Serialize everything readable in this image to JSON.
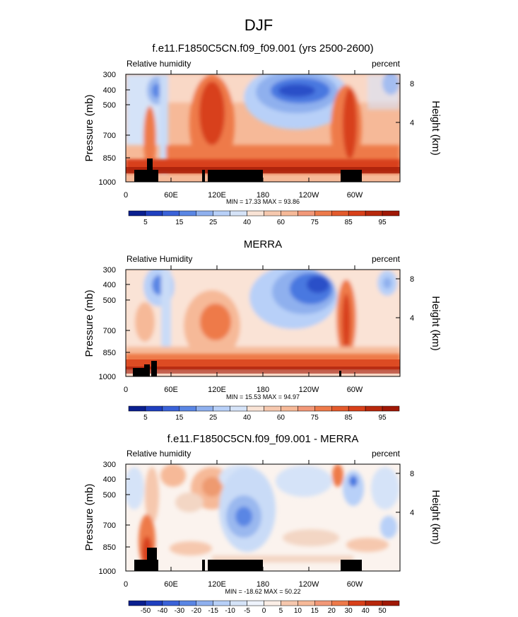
{
  "page_title": "DJF",
  "colors": {
    "blue_dark": "#0a1f8f",
    "blue_mid": "#4a78e0",
    "blue_light": "#b8d0f8",
    "neutral": "#f7e6dc",
    "peach": "#f6b998",
    "orange": "#ee7a4a",
    "red": "#d8401a",
    "red_dark": "#a01806",
    "terrain": "#000000"
  },
  "chart_data": [
    {
      "type": "heatmap",
      "title": "f.e11.F1850C5CN.f09_f09.001 (yrs 2500-2600)",
      "left_label": "Relative humidity",
      "right_label": "percent",
      "ylabel": "Pressure (mb)",
      "ylabel_right": "Height (km)",
      "yticks": [
        "300",
        "400",
        "500",
        "700",
        "850",
        "1000"
      ],
      "yticks_right": [
        "8",
        "4"
      ],
      "xticks": [
        "0",
        "60E",
        "120E",
        "180",
        "120W",
        "60W"
      ],
      "stats": "MIN = 17.33  MAX = 93.86",
      "colorbar_labels": [
        "5",
        "15",
        "25",
        "40",
        "60",
        "75",
        "85",
        "95"
      ],
      "zlim": [
        17.33,
        93.86
      ]
    },
    {
      "type": "heatmap",
      "title": "MERRA",
      "left_label": "Relative Humidity",
      "right_label": "percent",
      "ylabel": "Pressure (mb)",
      "ylabel_right": "Height (km)",
      "yticks": [
        "300",
        "400",
        "500",
        "700",
        "850",
        "1000"
      ],
      "yticks_right": [
        "8",
        "4"
      ],
      "xticks": [
        "0",
        "60E",
        "120E",
        "180",
        "120W",
        "60W"
      ],
      "stats": "MIN = 15.53  MAX = 94.97",
      "colorbar_labels": [
        "5",
        "15",
        "25",
        "40",
        "60",
        "75",
        "85",
        "95"
      ],
      "zlim": [
        15.53,
        94.97
      ]
    },
    {
      "type": "heatmap",
      "title": "f.e11.F1850C5CN.f09_f09.001 - MERRA",
      "left_label": "Relative humidity",
      "right_label": "percent",
      "ylabel": "Pressure (mb)",
      "ylabel_right": "Height (km)",
      "yticks": [
        "300",
        "400",
        "500",
        "700",
        "850",
        "1000"
      ],
      "yticks_right": [
        "8",
        "4"
      ],
      "xticks": [
        "0",
        "60E",
        "120E",
        "180",
        "120W",
        "60W"
      ],
      "stats": "MIN = -18.62  MAX = 50.22",
      "colorbar_labels": [
        "-50",
        "-40",
        "-30",
        "-20",
        "-15",
        "-10",
        "-5",
        "0",
        "5",
        "10",
        "15",
        "20",
        "30",
        "40",
        "50"
      ],
      "zlim": [
        -18.62,
        50.22
      ]
    }
  ]
}
